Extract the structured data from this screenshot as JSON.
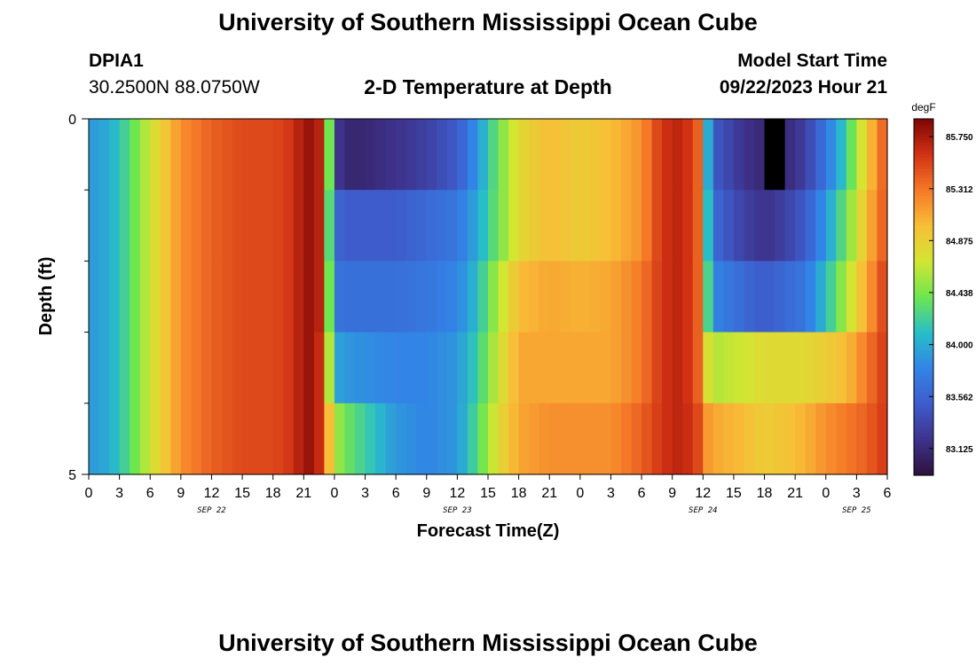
{
  "header": {
    "title": "University of Southern Mississippi Ocean Cube",
    "station": "DPIA1",
    "coords": "30.2500N  88.0750W",
    "plot_title": "2-D Temperature at Depth",
    "model_start_label": "Model Start Time",
    "model_start_value": "09/22/2023 Hour 21"
  },
  "footer": {
    "title": "University of Southern Mississippi Ocean Cube"
  },
  "chart_data": {
    "type": "heatmap",
    "title": "2-D Temperature at Depth",
    "xlabel": "Forecast Time(Z)",
    "ylabel": "Depth (ft)",
    "x_tick_labels": [
      "0",
      "3",
      "6",
      "9",
      "12",
      "15",
      "18",
      "21",
      "0",
      "3",
      "6",
      "9",
      "12",
      "15",
      "18",
      "21",
      "0",
      "3",
      "6",
      "9",
      "12",
      "15",
      "18",
      "21",
      "0",
      "3",
      "6"
    ],
    "date_labels": [
      {
        "label": "SEP 22",
        "at_tick": 4
      },
      {
        "label": "SEP 23",
        "at_tick": 12
      },
      {
        "label": "SEP 24",
        "at_tick": 20
      },
      {
        "label": "SEP 25",
        "at_tick": 25
      }
    ],
    "y_tick_labels": [
      "0",
      "5"
    ],
    "y_range": [
      0,
      5
    ],
    "x_range_hours": [
      0,
      78
    ],
    "colorbar": {
      "unit": "degF",
      "min": 82.9,
      "max": 85.9,
      "tick_labels": [
        "85.750",
        "85.312",
        "84.875",
        "84.438",
        "84.000",
        "83.562",
        "83.125"
      ],
      "tick_values": [
        85.75,
        85.312,
        84.875,
        84.438,
        84.0,
        83.562,
        83.125
      ]
    },
    "depth_layers": 5,
    "grid_columns": 78,
    "time_knots_hours": [
      0,
      2,
      4,
      6,
      9,
      12,
      15,
      18,
      20,
      21,
      22,
      23,
      23.5,
      24,
      25,
      27,
      30,
      33,
      36,
      38,
      40,
      42,
      45,
      48,
      51,
      54,
      56,
      58,
      59.5,
      60,
      61,
      64,
      66,
      68,
      70,
      72,
      74,
      76,
      78
    ],
    "layer_values": [
      [
        83.9,
        84.0,
        84.3,
        84.7,
        85.2,
        85.4,
        85.5,
        85.5,
        85.6,
        85.8,
        85.8,
        85.6,
        84.4,
        83.3,
        83.1,
        83.1,
        83.2,
        83.3,
        83.5,
        83.9,
        84.4,
        84.8,
        85.0,
        84.9,
        85.0,
        85.2,
        85.6,
        85.7,
        85.4,
        84.5,
        83.5,
        83.2,
        83.1,
        83.1,
        83.3,
        83.7,
        84.2,
        84.9,
        85.5
      ],
      [
        83.9,
        84.0,
        84.3,
        84.7,
        85.2,
        85.4,
        85.5,
        85.5,
        85.6,
        85.8,
        85.8,
        85.6,
        84.3,
        83.6,
        83.5,
        83.5,
        83.5,
        83.6,
        83.7,
        84.0,
        84.4,
        84.8,
        85.0,
        84.9,
        85.0,
        85.2,
        85.6,
        85.7,
        85.4,
        84.6,
        83.6,
        83.3,
        83.2,
        83.3,
        83.5,
        83.9,
        84.4,
        85.0,
        85.5
      ],
      [
        83.9,
        84.0,
        84.3,
        84.7,
        85.2,
        85.4,
        85.5,
        85.5,
        85.6,
        85.8,
        85.8,
        85.6,
        84.4,
        83.7,
        83.65,
        83.65,
        83.65,
        83.7,
        83.8,
        84.1,
        84.6,
        85.0,
        85.1,
        85.05,
        85.1,
        85.3,
        85.6,
        85.7,
        85.4,
        84.7,
        83.8,
        83.6,
        83.5,
        83.6,
        83.7,
        84.1,
        84.6,
        85.1,
        85.6
      ],
      [
        83.9,
        84.0,
        84.3,
        84.7,
        85.2,
        85.4,
        85.5,
        85.5,
        85.6,
        85.8,
        85.8,
        85.5,
        84.6,
        84.0,
        83.9,
        83.85,
        83.8,
        83.8,
        83.9,
        84.2,
        84.7,
        85.1,
        85.1,
        85.1,
        85.1,
        85.3,
        85.6,
        85.7,
        85.4,
        84.9,
        84.6,
        84.7,
        84.8,
        84.8,
        84.8,
        84.9,
        85.0,
        85.3,
        85.6
      ],
      [
        83.9,
        84.0,
        84.3,
        84.7,
        85.2,
        85.4,
        85.5,
        85.5,
        85.6,
        85.8,
        85.8,
        85.5,
        85.0,
        84.6,
        84.4,
        84.2,
        83.9,
        83.8,
        83.9,
        84.3,
        84.8,
        85.1,
        85.2,
        85.2,
        85.2,
        85.4,
        85.6,
        85.7,
        85.5,
        85.2,
        85.1,
        85.0,
        84.9,
        84.95,
        85.05,
        85.2,
        85.3,
        85.4,
        85.6
      ]
    ],
    "missing_cells": [
      {
        "layer": 0,
        "hour_start": 66.5,
        "hour_end": 67.5
      }
    ]
  }
}
